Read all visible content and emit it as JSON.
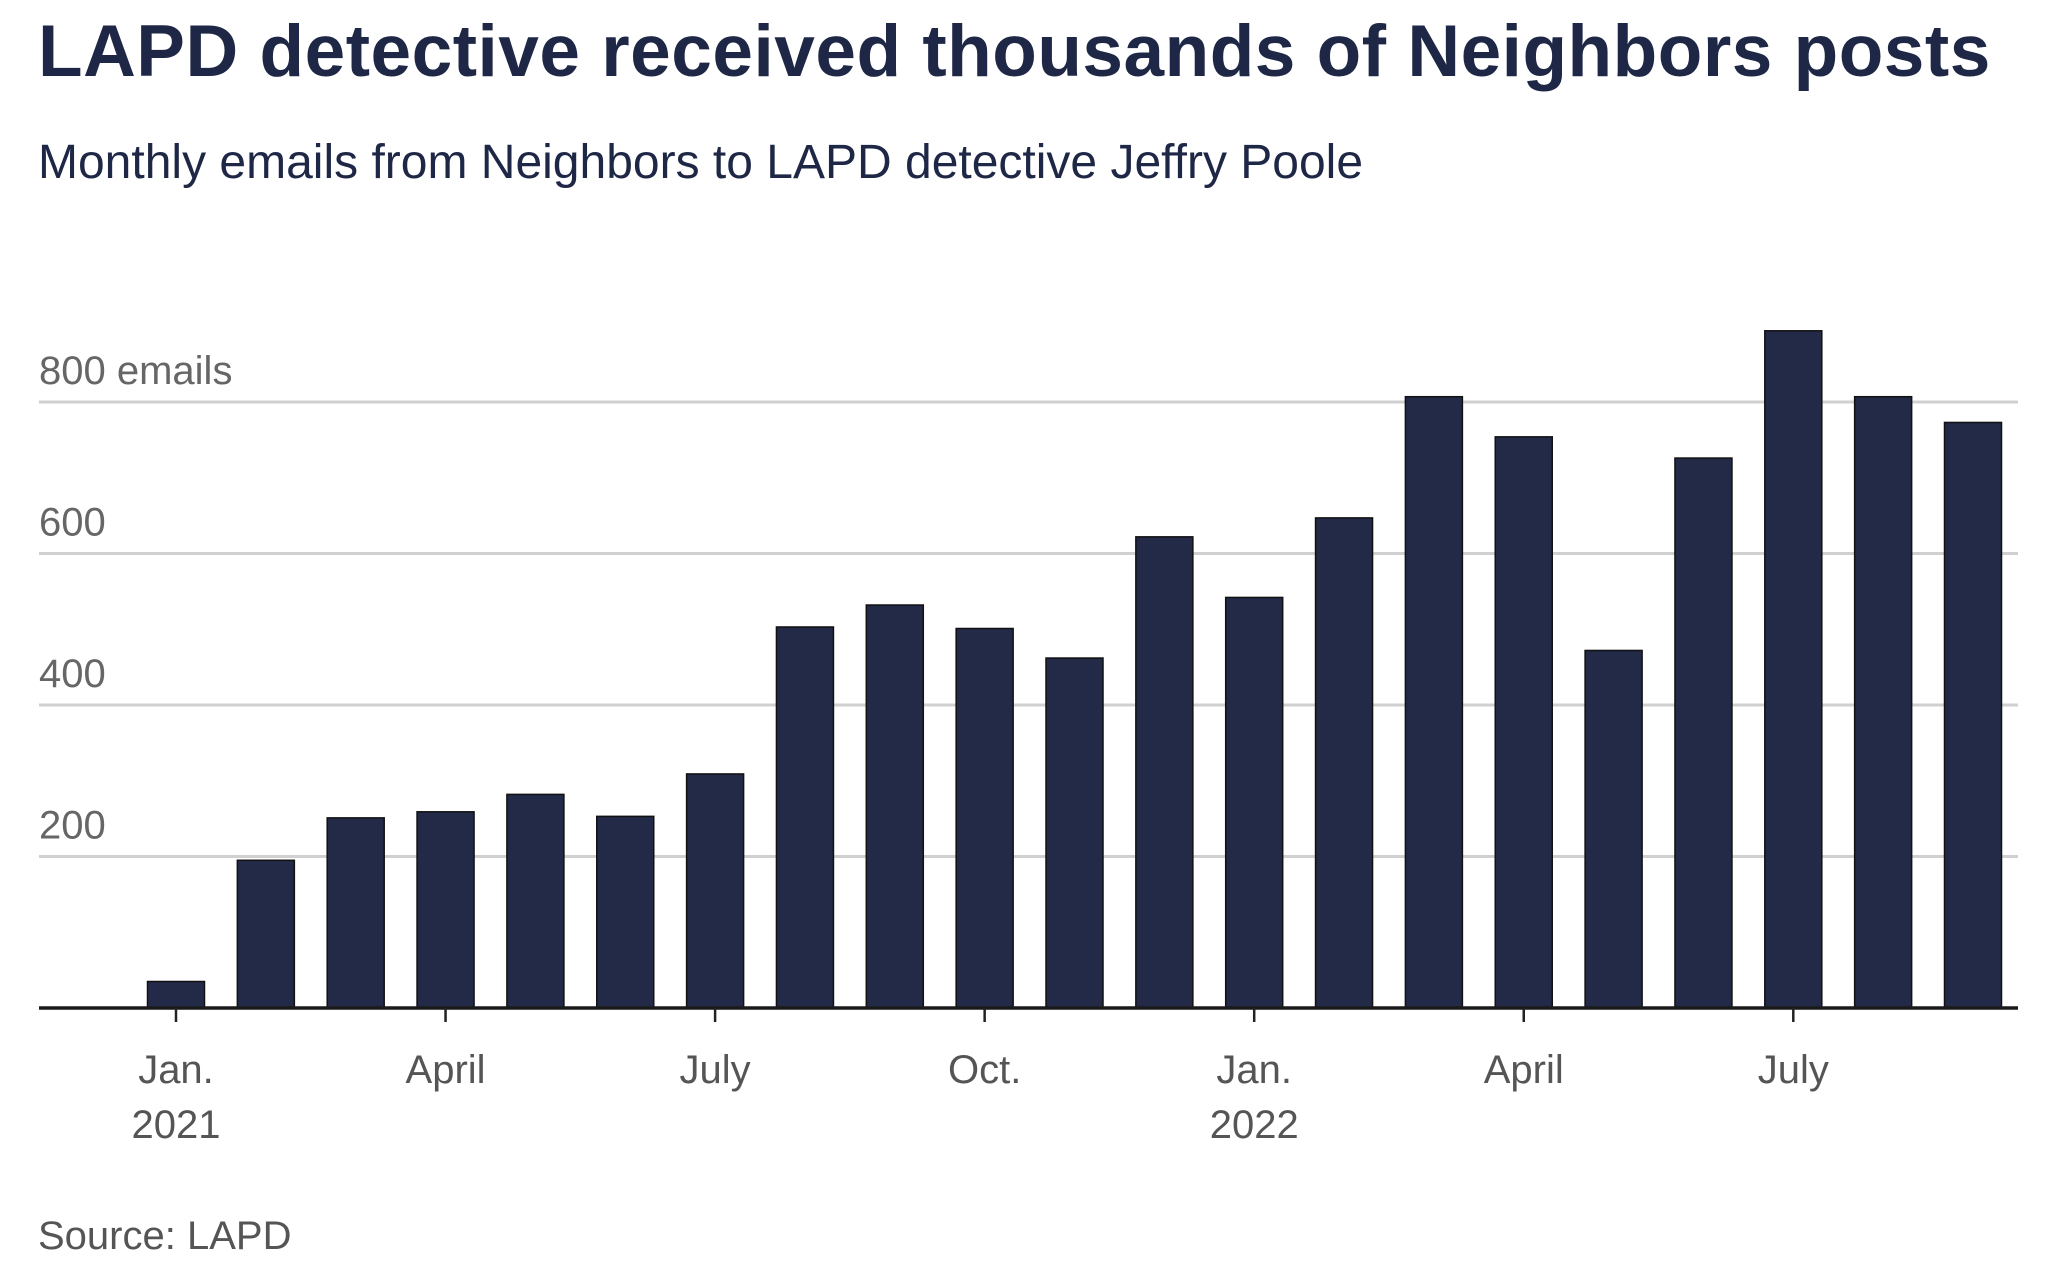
{
  "chart_data": {
    "type": "bar",
    "title": "LAPD detective received thousands of Neighbors posts",
    "subtitle": "Monthly emails from Neighbors to LAPD detective Jeffry Poole",
    "source": "Source: LAPD",
    "categories": [
      "2021-01",
      "2021-02",
      "2021-03",
      "2021-04",
      "2021-05",
      "2021-06",
      "2021-07",
      "2021-08",
      "2021-09",
      "2021-10",
      "2021-11",
      "2021-12",
      "2022-01",
      "2022-02",
      "2022-03",
      "2022-04",
      "2022-05",
      "2022-06",
      "2022-07",
      "2022-08",
      "2022-09"
    ],
    "values": [
      35,
      195,
      251,
      259,
      282,
      253,
      309,
      503,
      532,
      501,
      462,
      622,
      542,
      647,
      807,
      754,
      472,
      726,
      894,
      807,
      773
    ],
    "ylim": [
      0,
      900
    ],
    "yticks": [
      {
        "value": 200,
        "label": "200"
      },
      {
        "value": 400,
        "label": "400"
      },
      {
        "value": 600,
        "label": "600"
      },
      {
        "value": 800,
        "label": "800 emails"
      }
    ],
    "xticks": [
      {
        "index": 0,
        "line1": "Jan.",
        "line2": "2021"
      },
      {
        "index": 3,
        "line1": "April",
        "line2": ""
      },
      {
        "index": 6,
        "line1": "July",
        "line2": ""
      },
      {
        "index": 9,
        "line1": "Oct.",
        "line2": ""
      },
      {
        "index": 12,
        "line1": "Jan.",
        "line2": "2022"
      },
      {
        "index": 15,
        "line1": "April",
        "line2": ""
      },
      {
        "index": 18,
        "line1": "July",
        "line2": ""
      }
    ],
    "grid": true,
    "colors": {
      "bar": "#222a47",
      "text": "#1e2745",
      "grid": "#d0d0d0",
      "axis": "#1a1a1a"
    }
  }
}
